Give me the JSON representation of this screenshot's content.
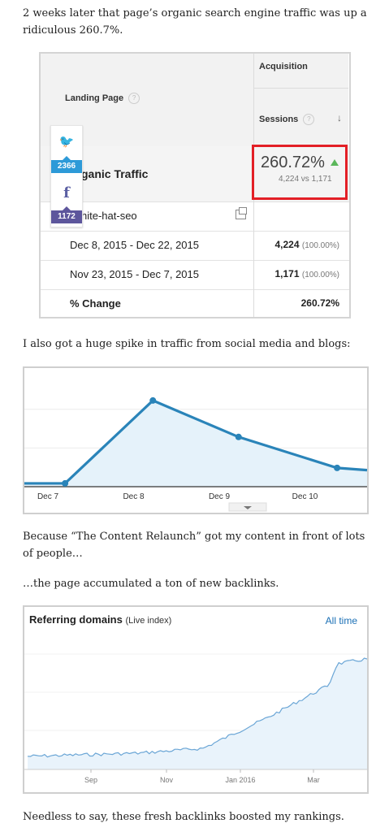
{
  "paragraphs": {
    "intro": "2 weeks later that page’s organic search engine traffic was up a ridiculous 260.7%.",
    "social": "I also got a huge spike in traffic from social media and blogs:",
    "relaunch": "Because “The Content Relaunch” got my content in front of lots of people…",
    "backlinks": "…the page accumulated a ton of new backlinks.",
    "rankings": "Needless to say, these fresh backlinks boosted my rankings."
  },
  "analytics": {
    "landing_page_label": "Landing Page",
    "acquisition_label": "Acquisition",
    "sessions_label": "Sessions",
    "help_glyph": "?",
    "total_row": {
      "title": "ganic Traffic",
      "big": "260.72%",
      "compare": "4,224 vs 1,171"
    },
    "page_row": {
      "title": "hite-hat-seo"
    },
    "rows": [
      {
        "date": "Dec 8, 2015 - Dec 22, 2015",
        "value": "4,224",
        "pct": "(100.00%)"
      },
      {
        "date": "Nov 23, 2015 - Dec 7, 2015",
        "value": "1,171",
        "pct": "(100.00%)"
      }
    ],
    "change_row": {
      "label": "% Change",
      "value": "260.72%"
    }
  },
  "share": {
    "twitter_count": "2366",
    "facebook_count": "1172",
    "facebook_glyph": "f",
    "twitter_glyph": "🐦"
  },
  "chart_data": [
    {
      "type": "line",
      "categories": [
        "Dec 7",
        "Dec 8",
        "Dec 9",
        "Dec 10"
      ],
      "x": [
        0,
        0.95,
        3.0,
        5.0,
        7.3,
        8.0
      ],
      "values": [
        3,
        3,
        78,
        45,
        17,
        15
      ],
      "ylim": [
        0,
        100
      ],
      "color": "#2a84b9",
      "fill": "#e5f2fa"
    },
    {
      "type": "area",
      "title": "Referring domains",
      "subtitle": "(Live index)",
      "range_label": "All time",
      "tick_labels": [
        "Sep",
        "Nov",
        "Jan 2016",
        "Mar"
      ],
      "color": "#6ba6d6",
      "fill": "#e9f3fb"
    }
  ]
}
